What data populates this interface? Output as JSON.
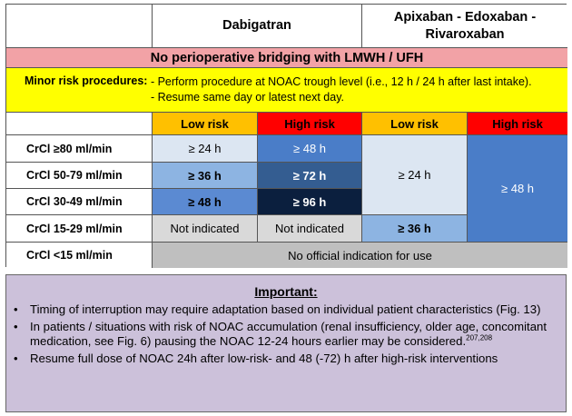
{
  "header": {
    "dabigatran": "Dabigatran",
    "others": "Apixaban - Edoxaban - Rivaroxaban"
  },
  "banner": "No perioperative bridging with LMWH / UFH",
  "minor_risk": {
    "label": "Minor risk procedures: ",
    "line1": "- Perform procedure at NOAC trough level (i.e., 12 h / 24 h after last intake).",
    "line2": "- Resume same day or latest next day."
  },
  "risk_headers": [
    "Low risk",
    "High risk",
    "Low risk",
    "High risk"
  ],
  "rows": [
    {
      "label": "CrCl ≥80 ml/min",
      "dabi_low": "≥ 24 h",
      "dabi_high": "≥ 48 h"
    },
    {
      "label": "CrCl 50-79 ml/min",
      "dabi_low": "≥ 36 h",
      "dabi_high": "≥ 72 h"
    },
    {
      "label": "CrCl 30-49 ml/min",
      "dabi_low": "≥ 48 h",
      "dabi_high": "≥ 96 h"
    },
    {
      "label": "CrCl 15-29 ml/min",
      "dabi_low": "Not indicated",
      "dabi_high": "Not indicated",
      "other_low": "≥ 36 h"
    },
    {
      "label": "CrCl <15 ml/min",
      "span": "No official indication for use"
    }
  ],
  "other_low_merged": "≥ 24 h",
  "other_high_merged": "≥ 48 h",
  "important": {
    "title": "Important:",
    "bullet": "•",
    "items": [
      "Timing of interruption may require adaptation based on individual patient characteristics (Fig. 13)",
      "In patients / situations with risk of NOAC accumulation (renal insufficiency, older age, concomitant medication, see Fig. 6) pausing the NOAC 12-24 hours earlier may be considered.",
      "Resume full dose of NOAC 24h after low-risk- and 48 (-72) h after high-risk interventions"
    ],
    "refs": "207,208"
  },
  "colors": {
    "banner": "#f2a2a6",
    "minor": "#ffff00",
    "low_risk": "#ffc000",
    "high_risk": "#ff0000",
    "panel": "#ccc1da"
  }
}
